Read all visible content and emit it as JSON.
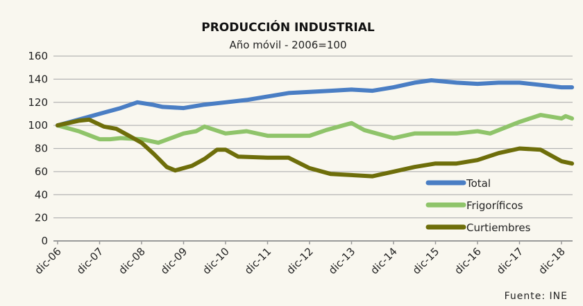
{
  "chart_data": {
    "type": "line",
    "title": "PRODUCCIÓN INDUSTRIAL",
    "subtitle": "Año móvil - 2006=100",
    "source": "Fuente: INE",
    "xlabel": "",
    "ylabel": "",
    "ylim": [
      0,
      160
    ],
    "yticks": [
      0,
      20,
      40,
      60,
      80,
      100,
      120,
      140,
      160
    ],
    "xticks": [
      "dic-06",
      "dic-07",
      "dic-08",
      "dic-09",
      "dic-10",
      "dic-11",
      "dic-12",
      "dic-13",
      "dic-14",
      "dic-15",
      "dic-16",
      "dic-17",
      "dic-18"
    ],
    "x_unit": "years since dic-06",
    "xlim": [
      0,
      12.25
    ],
    "grid": true,
    "legend_position": "bottom-right",
    "series": [
      {
        "name": "Total",
        "color": "#4a7ec4",
        "x": [
          0,
          0.5,
          1,
          1.5,
          1.9,
          2.25,
          2.5,
          3,
          3.5,
          4,
          4.5,
          5,
          5.5,
          6,
          6.5,
          7,
          7.5,
          8,
          8.5,
          8.9,
          9.5,
          10,
          10.5,
          11,
          11.5,
          12,
          12.25
        ],
        "y": [
          100,
          105,
          110,
          115,
          120,
          118,
          116,
          115,
          118,
          120,
          122,
          125,
          128,
          129,
          130,
          131,
          130,
          133,
          137,
          139,
          137,
          136,
          137,
          137,
          135,
          133,
          133
        ]
      },
      {
        "name": "Frigoríficos",
        "color": "#8fc46a",
        "x": [
          0,
          0.5,
          1,
          1.25,
          1.5,
          2,
          2.4,
          3,
          3.3,
          3.5,
          4,
          4.5,
          5,
          5.5,
          6,
          6.4,
          7,
          7.3,
          8,
          8.5,
          9,
          9.5,
          10,
          10.3,
          11,
          11.5,
          12,
          12.1,
          12.25
        ],
        "y": [
          100,
          95,
          88,
          88,
          89,
          88,
          85,
          93,
          95,
          99,
          93,
          95,
          91,
          91,
          91,
          96,
          102,
          96,
          89,
          93,
          93,
          93,
          95,
          93,
          103,
          109,
          106,
          108,
          106
        ]
      },
      {
        "name": "Curtiembres",
        "color": "#6e6e0a",
        "x": [
          0,
          0.5,
          0.75,
          1.1,
          1.4,
          1.75,
          2,
          2.3,
          2.6,
          2.8,
          3.2,
          3.5,
          3.8,
          4,
          4.3,
          5,
          5.5,
          6,
          6.5,
          7,
          7.5,
          8,
          8.5,
          9,
          9.5,
          10,
          10.5,
          11,
          11.5,
          12,
          12.25
        ],
        "y": [
          100,
          104,
          105,
          99,
          97,
          90,
          85,
          75,
          64,
          61,
          65,
          71,
          79,
          79,
          73,
          72,
          72,
          63,
          58,
          57,
          56,
          60,
          64,
          67,
          67,
          70,
          76,
          80,
          79,
          69,
          67
        ]
      }
    ]
  }
}
